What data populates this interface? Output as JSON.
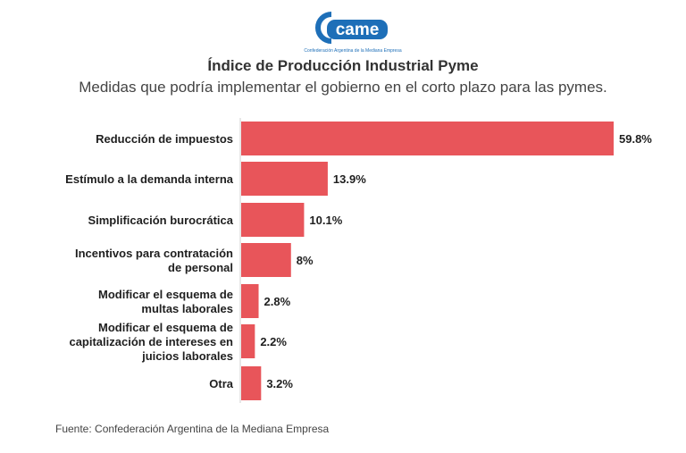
{
  "logo": {
    "text": "came",
    "caption": "Confederación Argentina de la Mediana Empresa"
  },
  "chart_data": {
    "type": "bar",
    "orientation": "horizontal",
    "title": "Índice de Producción Industrial Pyme",
    "subtitle": "Medidas que podría implementar el gobierno en el corto plazo para las pymes.",
    "categories": [
      [
        "Reducción de impuestos"
      ],
      [
        "Estímulo a la demanda interna"
      ],
      [
        "Simplificación burocrática"
      ],
      [
        "Incentivos para contratación",
        "de personal"
      ],
      [
        "Modificar el esquema de",
        "multas laborales"
      ],
      [
        "Modificar el esquema de",
        "capitalización de intereses en",
        "juicios laborales"
      ],
      [
        "Otra"
      ]
    ],
    "values": [
      59.8,
      13.9,
      10.1,
      8,
      2.8,
      2.2,
      3.2
    ],
    "value_labels": [
      "59.8%",
      "13.9%",
      "10.1%",
      "8%",
      "2.8%",
      "2.2%",
      "3.2%"
    ],
    "bar_color": "#e8555a",
    "xlim": [
      0,
      59.8
    ],
    "grid": false,
    "legend": "none"
  },
  "source": "Fuente: Confederación Argentina de la Mediana Empresa"
}
